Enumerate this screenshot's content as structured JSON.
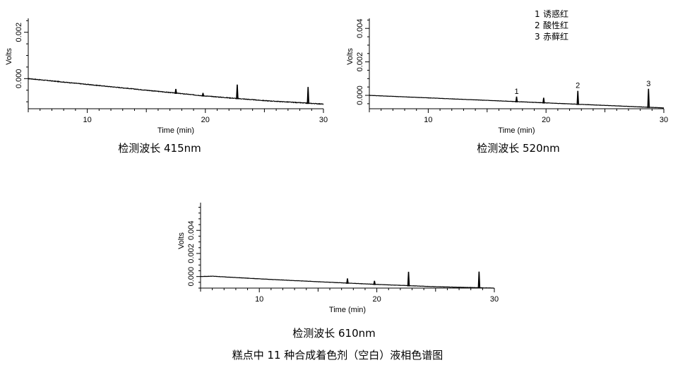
{
  "figure_caption": "糕点中 11 种合成着色剂（空白）液相色谱图",
  "chart_data": [
    {
      "type": "line",
      "caption": "检测波长 415nm",
      "xlabel": "Time (min)",
      "ylabel": "Volts",
      "xlim": [
        5,
        30
      ],
      "ylim": [
        -0.0013,
        0.0026
      ],
      "xticks": [
        10,
        20,
        30
      ],
      "yticks": [
        0.0,
        0.002
      ],
      "ytick_labels": [
        "0.000",
        "0.002"
      ],
      "grid": false,
      "baseline": {
        "x": [
          5,
          10,
          15,
          20,
          25,
          30
        ],
        "y": [
          0.0,
          -0.00025,
          -0.0005,
          -0.00075,
          -0.00095,
          -0.0011
        ]
      },
      "spikes": [
        {
          "x": 17.5,
          "height": 0.00018
        },
        {
          "x": 19.8,
          "height": 0.00012
        },
        {
          "x": 22.7,
          "height": 0.0006
        },
        {
          "x": 28.7,
          "height": 0.0007
        }
      ],
      "peak_labels": []
    },
    {
      "type": "line",
      "caption": "检测波长 520nm",
      "xlabel": "Time (min)",
      "ylabel": "Volts",
      "xlim": [
        5,
        30
      ],
      "ylim": [
        -0.0008,
        0.0046
      ],
      "xticks": [
        10,
        20,
        30
      ],
      "yticks": [
        0.0,
        0.002,
        0.004
      ],
      "ytick_labels": [
        "0.000",
        "0.002",
        "0.004"
      ],
      "grid": false,
      "baseline": {
        "x": [
          5,
          10,
          15,
          20,
          25,
          30
        ],
        "y": [
          0.0,
          -0.00015,
          -0.0003,
          -0.00045,
          -0.0006,
          -0.00075
        ]
      },
      "spikes": [
        {
          "x": 17.5,
          "height": 0.0003
        },
        {
          "x": 19.8,
          "height": 0.0003
        },
        {
          "x": 22.7,
          "height": 0.0008
        },
        {
          "x": 28.7,
          "height": 0.0011
        }
      ],
      "peak_labels": [
        {
          "label": "1",
          "x": 17.5
        },
        {
          "label": "2",
          "x": 22.7
        },
        {
          "label": "3",
          "x": 28.7
        }
      ],
      "legend": {
        "placement": "top-right",
        "entries": [
          {
            "num": "1",
            "name": "诱惑红"
          },
          {
            "num": "2",
            "name": "酸性红"
          },
          {
            "num": "3",
            "name": "赤藓红"
          }
        ]
      }
    },
    {
      "type": "line",
      "caption": "检测波长 610nm",
      "xlabel": "Time (min)",
      "ylabel": "Volts",
      "xlim": [
        5,
        30
      ],
      "ylim": [
        -0.001,
        0.0064
      ],
      "xticks": [
        10,
        20,
        30
      ],
      "yticks": [
        0.0,
        0.002,
        0.004
      ],
      "ytick_labels": [
        "0.000",
        "0.002",
        "0.004"
      ],
      "grid": false,
      "baseline": {
        "x": [
          5,
          6,
          10,
          15,
          20,
          25,
          30
        ],
        "y": [
          0.0,
          3e-05,
          -0.0002,
          -0.00045,
          -0.00068,
          -0.00088,
          -0.001
        ]
      },
      "spikes": [
        {
          "x": 17.5,
          "height": 0.0004
        },
        {
          "x": 19.8,
          "height": 0.0003
        },
        {
          "x": 22.7,
          "height": 0.0012
        },
        {
          "x": 28.7,
          "height": 0.0014
        }
      ],
      "peak_labels": []
    }
  ]
}
